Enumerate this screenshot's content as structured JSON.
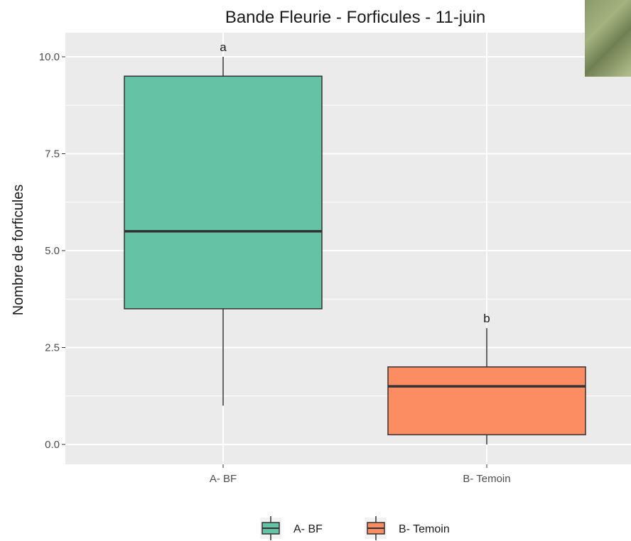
{
  "chart_data": {
    "type": "boxplot",
    "title": "Bande Fleurie - Forficules - 11-juin",
    "xlabel": "",
    "ylabel": "Nombre de forficules",
    "ylim": [
      -0.5,
      10.5
    ],
    "yticks": [
      0.0,
      2.5,
      5.0,
      7.5,
      10.0
    ],
    "ytick_labels": [
      "0.0",
      "2.5",
      "5.0",
      "7.5",
      "10.0"
    ],
    "grid": true,
    "legend_position": "bottom",
    "categories": [
      "A- BF",
      "B- Temoin"
    ],
    "boxes": [
      {
        "category": "A- BF",
        "min": 1.0,
        "q1": 3.5,
        "median": 5.5,
        "q3": 9.5,
        "max": 10.0,
        "color": "#66C2A5",
        "significance": "a"
      },
      {
        "category": "B- Temoin",
        "min": 0.0,
        "q1": 0.25,
        "median": 1.5,
        "q3": 2.0,
        "max": 3.0,
        "color": "#FC8D62",
        "significance": "b"
      }
    ],
    "legend": [
      {
        "label": "A- BF",
        "color": "#66C2A5"
      },
      {
        "label": "B- Temoin",
        "color": "#FC8D62"
      }
    ]
  },
  "colors": {
    "panel_background": "#EBEBEB",
    "grid": "#FFFFFF",
    "outline": "#333333"
  }
}
